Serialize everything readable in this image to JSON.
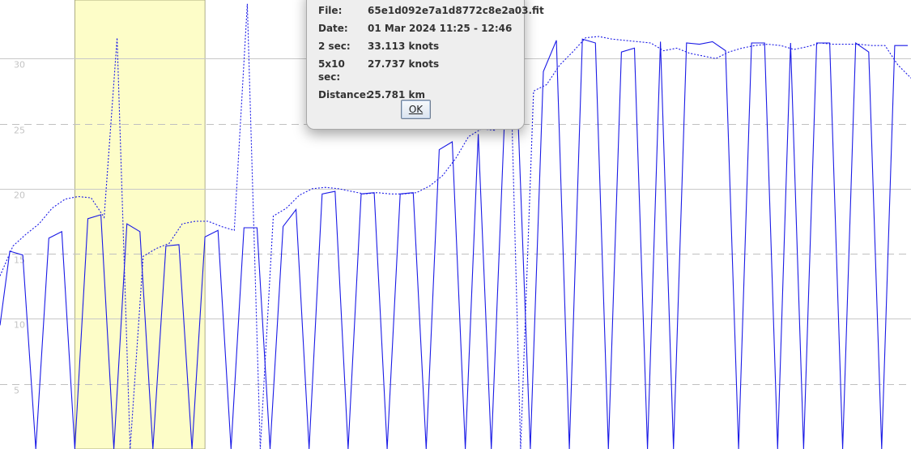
{
  "chart_data": {
    "type": "line",
    "ylim": [
      0,
      34.5
    ],
    "xlim": [
      0,
      70
    ],
    "yticks": [
      5,
      10,
      15,
      20,
      25,
      30
    ],
    "grid": "horizontal",
    "highlight_band": [
      5.75,
      15.75
    ],
    "colors": {
      "series": "#1a1ae6",
      "highlight": "#fdfdc8",
      "grid_major": "#c8c8c8",
      "grid_minor": "#c0c0c0"
    },
    "series": [
      {
        "style": "solid",
        "x": [
          0,
          0.75,
          1.75,
          2.75,
          3.75,
          4.75,
          5.75,
          6.75,
          7.75,
          8.75,
          9.75,
          10.75,
          11.75,
          12.75,
          13.75,
          14.75,
          15.75,
          16.75,
          17.75,
          18.75,
          19.75,
          20.75,
          21.75,
          22.75,
          23.75,
          24.75,
          25.75,
          26.75,
          27.75,
          28.75,
          29.75,
          30.75,
          31.75,
          32.75,
          33.75,
          34.75,
          35.75,
          36.75,
          37.75,
          38.75,
          39.75,
          40.75,
          41.75,
          42.75,
          43.75,
          44.75,
          45.75,
          46.75,
          47.75,
          48.75,
          49.75,
          50.75,
          51.75,
          52.75,
          53.75,
          54.75,
          55.75,
          56.75,
          57.75,
          58.75,
          59.75,
          60.75,
          61.75,
          62.75,
          63.75,
          64.75,
          65.75,
          66.75,
          67.75,
          68.75,
          69.75
        ],
        "y": [
          9.5,
          15.2,
          14.9,
          0,
          16.2,
          16.7,
          0,
          17.7,
          18.0,
          0,
          17.3,
          16.7,
          0,
          15.6,
          15.7,
          0,
          16.3,
          16.8,
          0,
          17.0,
          17.0,
          0,
          17.1,
          18.4,
          0,
          19.6,
          19.8,
          0,
          19.6,
          19.7,
          0,
          19.6,
          19.7,
          0,
          23.0,
          23.6,
          0,
          24.2,
          0,
          25.0,
          27.0,
          0,
          29.0,
          31.4,
          0,
          31.5,
          31.2,
          0,
          30.5,
          30.8,
          0,
          31.3,
          0,
          31.2,
          31.1,
          31.3,
          30.6,
          0,
          31.2,
          31.2,
          0,
          31.2,
          0,
          31.2,
          31.2,
          0,
          31.2,
          30.5,
          0,
          31.0,
          31.0
        ],
        "n": 71
      },
      {
        "style": "dotted",
        "x": [
          0,
          1,
          2,
          3,
          4,
          5,
          6,
          7,
          8,
          9,
          10,
          11,
          12,
          13,
          14,
          15,
          16,
          17,
          18,
          19,
          20,
          21,
          22,
          23,
          24,
          25,
          26,
          27,
          28,
          29,
          30,
          31,
          32,
          33,
          34,
          35,
          36,
          37,
          38,
          39,
          40,
          41,
          42,
          43,
          44,
          45,
          46,
          47,
          48,
          49,
          50,
          51,
          52,
          53,
          54,
          55,
          56,
          57,
          58,
          59,
          60,
          61,
          62,
          63,
          64,
          65,
          66,
          67,
          68,
          69,
          70
        ],
        "y": [
          13.3,
          15.6,
          16.5,
          17.3,
          18.5,
          19.2,
          19.4,
          19.3,
          17.8,
          31.6,
          0,
          14.8,
          15.4,
          15.8,
          17.3,
          17.5,
          17.5,
          17.1,
          16.8,
          34.2,
          0,
          17.9,
          18.5,
          19.5,
          20.0,
          20.1,
          20.0,
          19.8,
          19.6,
          19.7,
          19.6,
          19.6,
          19.7,
          20.2,
          21.0,
          22.3,
          24.0,
          24.6,
          24.5,
          38.0,
          0,
          27.5,
          28.0,
          29.5,
          30.5,
          31.6,
          31.7,
          31.5,
          31.4,
          31.3,
          31.2,
          30.6,
          30.8,
          30.4,
          30.2,
          30.0,
          30.5,
          30.8,
          31.0,
          31.1,
          31.0,
          30.7,
          30.9,
          31.2,
          31.1,
          31.1,
          31.1,
          31.0,
          31.0,
          29.5,
          28.5
        ],
        "n": 71
      }
    ]
  },
  "dialog": {
    "rows": [
      {
        "label": "File:",
        "value": "65e1d092e7a1d8772c8e2a03.fit"
      },
      {
        "label": "Date:",
        "value": "01 Mar 2024 11:25 - 12:46"
      },
      {
        "label": "2 sec:",
        "value": "33.113 knots"
      },
      {
        "label": "5x10 sec:",
        "value": "27.737 knots"
      },
      {
        "label": "Distance:",
        "value": "25.781 km"
      }
    ],
    "ok_label": "OK"
  }
}
